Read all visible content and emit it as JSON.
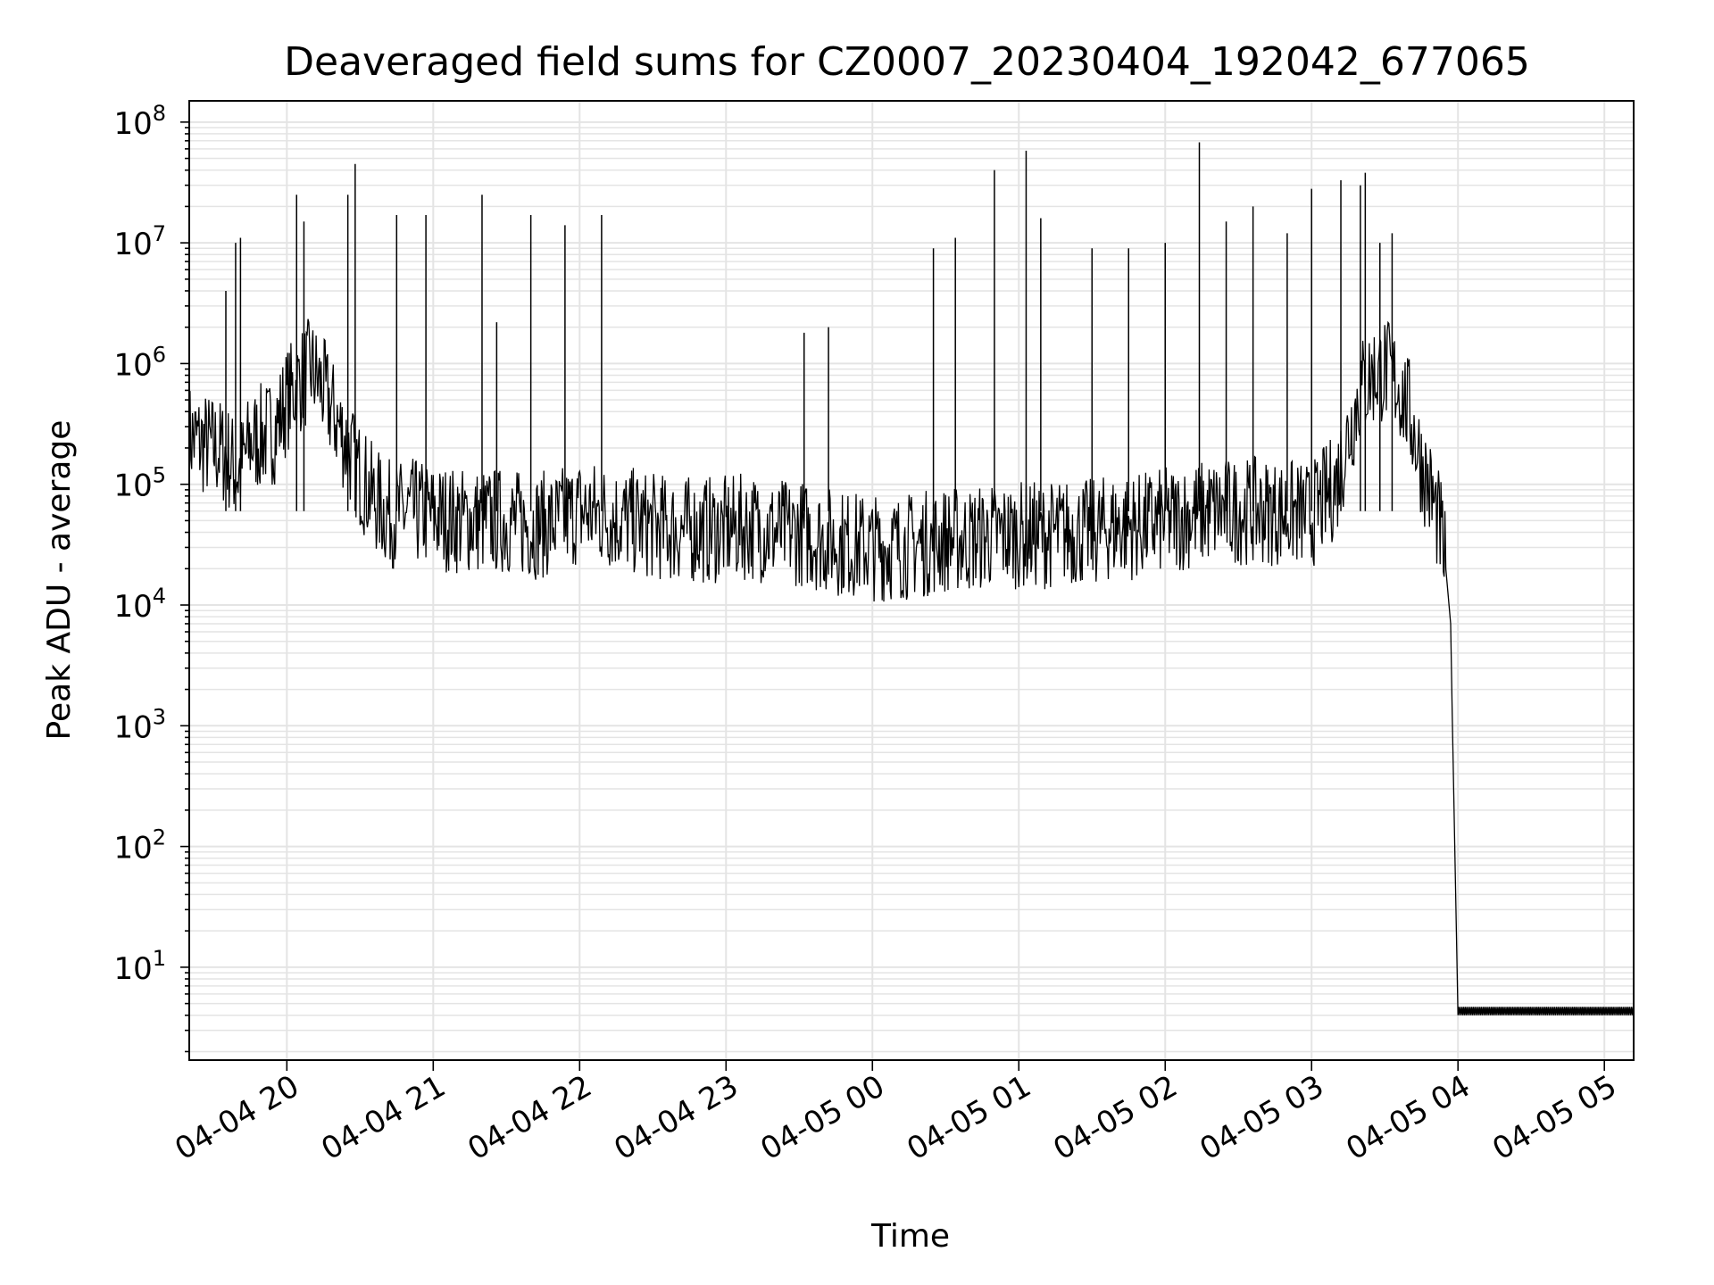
{
  "chart_data": {
    "type": "line",
    "title": "Deaveraged field sums for CZ0007_20230404_192042_677065",
    "xlabel": "Time",
    "ylabel": "Peak ADU - average",
    "yscale": "log",
    "ylim": [
      1.7,
      150000000
    ],
    "xlim": [
      "04-04 19:20",
      "04-05 05:12"
    ],
    "grid": true,
    "line_color": "#000000",
    "x_ticks": [
      "04-04 20",
      "04-04 21",
      "04-04 22",
      "04-04 23",
      "04-05 00",
      "04-05 01",
      "04-05 02",
      "04-05 03",
      "04-05 04",
      "04-05 05"
    ],
    "y_ticks": [
      {
        "base": "10",
        "exp": "1"
      },
      {
        "base": "10",
        "exp": "2"
      },
      {
        "base": "10",
        "exp": "3"
      },
      {
        "base": "10",
        "exp": "4"
      },
      {
        "base": "10",
        "exp": "5"
      },
      {
        "base": "10",
        "exp": "6"
      },
      {
        "base": "10",
        "exp": "7"
      },
      {
        "base": "10",
        "exp": "8"
      }
    ],
    "series": [
      {
        "x": [
          "04-04 19:20",
          "04-04 19:25",
          "04-04 19:30",
          "04-04 19:35",
          "04-04 19:40",
          "04-04 19:45",
          "04-04 19:50",
          "04-04 19:55",
          "04-04 20:00",
          "04-04 20:05",
          "04-04 20:10",
          "04-04 20:15",
          "04-04 20:20",
          "04-04 20:25",
          "04-04 20:30",
          "04-04 20:35",
          "04-04 20:40",
          "04-04 20:45",
          "04-04 20:50",
          "04-04 21:00",
          "04-04 21:10",
          "04-04 21:20",
          "04-04 21:30",
          "04-04 21:40",
          "04-04 21:50",
          "04-04 22:00",
          "04-04 22:10",
          "04-04 22:20",
          "04-04 22:30",
          "04-04 22:40",
          "04-04 22:50",
          "04-04 23:00",
          "04-04 23:10",
          "04-04 23:20",
          "04-04 23:30",
          "04-04 23:40",
          "04-04 23:50",
          "04-05 00:00",
          "04-05 00:10",
          "04-05 00:20",
          "04-05 00:30",
          "04-05 00:40",
          "04-05 00:50",
          "04-05 01:00",
          "04-05 01:10",
          "04-05 01:20",
          "04-05 01:30",
          "04-05 01:40",
          "04-05 01:50",
          "04-05 02:00",
          "04-05 02:10",
          "04-05 02:20",
          "04-05 02:30",
          "04-05 02:40",
          "04-05 02:50",
          "04-05 03:00",
          "04-05 03:10",
          "04-05 03:15",
          "04-05 03:20",
          "04-05 03:25",
          "04-05 03:30",
          "04-05 03:35",
          "04-05 03:40",
          "04-05 03:45",
          "04-05 03:50",
          "04-05 03:53",
          "04-05 03:55",
          "04-05 03:57",
          "04-05 03:58",
          "04-05 04:00",
          "04-05 04:30",
          "04-05 05:00",
          "04-05 05:12"
        ],
        "y": [
          250000,
          220000,
          200000,
          180000,
          120000,
          220000,
          250000,
          280000,
          500000,
          700000,
          900000,
          600000,
          350000,
          200000,
          120000,
          80000,
          60000,
          55000,
          60000,
          55000,
          50000,
          50000,
          50000,
          45000,
          48000,
          60000,
          55000,
          50000,
          45000,
          42000,
          42000,
          42000,
          45000,
          40000,
          40000,
          35000,
          32000,
          30000,
          30000,
          32000,
          35000,
          35000,
          38000,
          38000,
          38000,
          40000,
          40000,
          45000,
          45000,
          50000,
          55000,
          60000,
          60000,
          60000,
          58000,
          55000,
          100000,
          250000,
          600000,
          800000,
          900000,
          700000,
          400000,
          150000,
          70000,
          40000,
          20000,
          7000,
          500,
          4,
          4,
          4,
          4
        ]
      }
    ],
    "spikes": [
      {
        "x": "04-04 19:39",
        "y": 10000000
      },
      {
        "x": "04-04 19:41",
        "y": 11000000
      },
      {
        "x": "04-04 19:35",
        "y": 4000000
      },
      {
        "x": "04-04 20:04",
        "y": 25000000
      },
      {
        "x": "04-04 20:07",
        "y": 15000000
      },
      {
        "x": "04-04 20:25",
        "y": 25000000
      },
      {
        "x": "04-04 20:28",
        "y": 45000000
      },
      {
        "x": "04-04 20:45",
        "y": 17000000
      },
      {
        "x": "04-04 20:57",
        "y": 17000000
      },
      {
        "x": "04-04 21:20",
        "y": 25000000
      },
      {
        "x": "04-04 21:40",
        "y": 17000000
      },
      {
        "x": "04-04 21:26",
        "y": 2200000
      },
      {
        "x": "04-04 21:54",
        "y": 14000000
      },
      {
        "x": "04-04 22:09",
        "y": 17000000
      },
      {
        "x": "04-04 23:32",
        "y": 1800000
      },
      {
        "x": "04-04 23:42",
        "y": 2000000
      },
      {
        "x": "04-05 00:25",
        "y": 9000000
      },
      {
        "x": "04-05 00:34",
        "y": 11000000
      },
      {
        "x": "04-05 00:50",
        "y": 40000000
      },
      {
        "x": "04-05 01:03",
        "y": 58000000
      },
      {
        "x": "04-05 01:09",
        "y": 16000000
      },
      {
        "x": "04-05 01:30",
        "y": 9000000
      },
      {
        "x": "04-05 01:45",
        "y": 9000000
      },
      {
        "x": "04-05 02:00",
        "y": 10000000
      },
      {
        "x": "04-05 02:14",
        "y": 68000000
      },
      {
        "x": "04-05 02:25",
        "y": 15000000
      },
      {
        "x": "04-05 02:36",
        "y": 20000000
      },
      {
        "x": "04-05 02:50",
        "y": 12000000
      },
      {
        "x": "04-05 03:00",
        "y": 28000000
      },
      {
        "x": "04-05 03:12",
        "y": 33000000
      },
      {
        "x": "04-05 03:20",
        "y": 30000000
      },
      {
        "x": "04-05 03:22",
        "y": 38000000
      },
      {
        "x": "04-05 03:28",
        "y": 10000000
      },
      {
        "x": "04-05 03:33",
        "y": 12000000
      }
    ]
  }
}
